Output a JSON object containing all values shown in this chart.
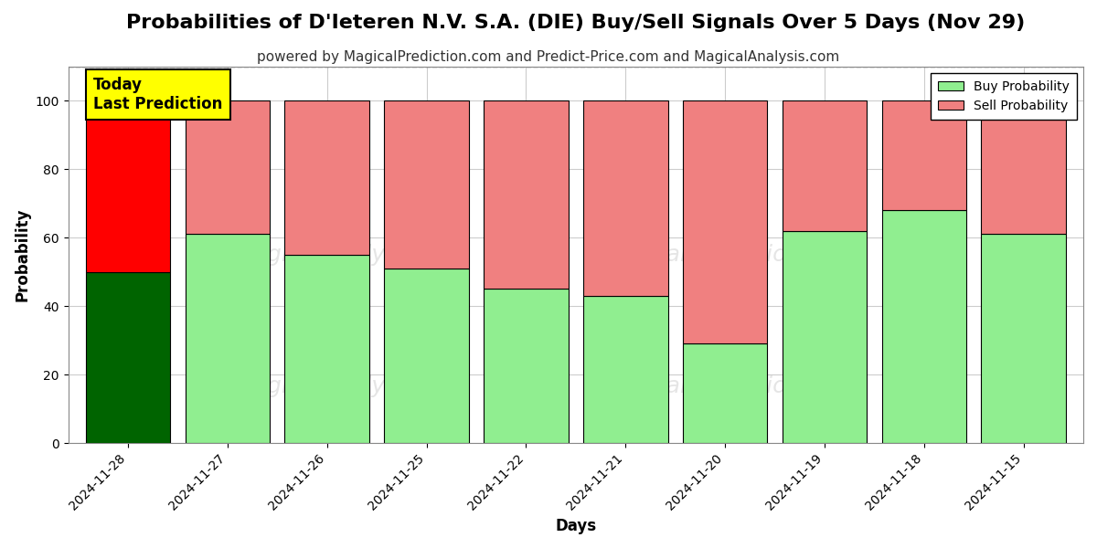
{
  "title": "Probabilities of D'Ieteren N.V. S.A. (DIE) Buy/Sell Signals Over 5 Days (Nov 29)",
  "subtitle": "powered by MagicalPrediction.com and Predict-Price.com and MagicalAnalysis.com",
  "xlabel": "Days",
  "ylabel": "Probability",
  "categories": [
    "2024-11-28",
    "2024-11-27",
    "2024-11-26",
    "2024-11-25",
    "2024-11-22",
    "2024-11-21",
    "2024-11-20",
    "2024-11-19",
    "2024-11-18",
    "2024-11-15"
  ],
  "buy_values": [
    50,
    61,
    55,
    51,
    45,
    43,
    29,
    62,
    68,
    61
  ],
  "sell_values": [
    50,
    39,
    45,
    49,
    55,
    57,
    71,
    38,
    32,
    39
  ],
  "buy_colors_today": "#006400",
  "sell_colors_today": "#ff0000",
  "buy_color": "#90EE90",
  "sell_color": "#F08080",
  "today_annotation": "Today\nLast Prediction",
  "ylim": [
    0,
    110
  ],
  "yticks": [
    0,
    20,
    40,
    60,
    80,
    100
  ],
  "dashed_line_y": 110,
  "legend_buy_label": "Buy Probability",
  "legend_sell_label": "Sell Probability",
  "figsize": [
    12,
    6
  ],
  "dpi": 100,
  "background_color": "#ffffff",
  "grid_color": "#cccccc",
  "title_fontsize": 16,
  "subtitle_fontsize": 11,
  "bar_width": 0.85,
  "bar_edgecolor": "#000000"
}
